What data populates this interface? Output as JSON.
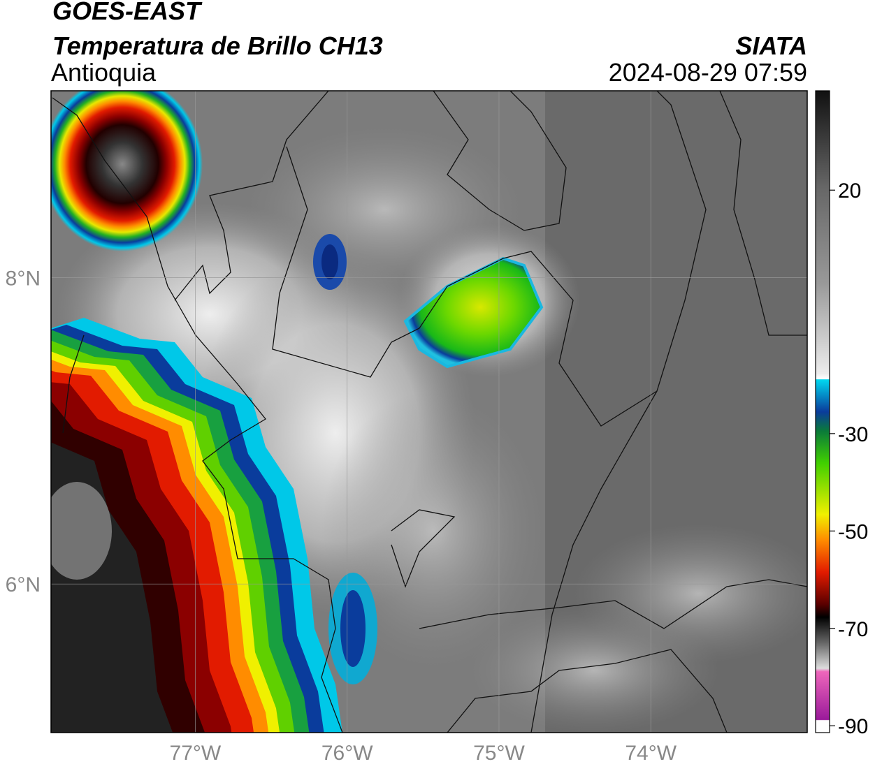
{
  "header": {
    "title": "GOES-EAST",
    "subtitle": "Temperatura de Brillo CH13",
    "region": "Antioquia",
    "source": "SIATA",
    "timestamp": "2024-08-29 07:59"
  },
  "map": {
    "xlim": [
      -77.95,
      -72.97
    ],
    "ylim": [
      5.03,
      9.22
    ],
    "xticks": [
      {
        "value": -77,
        "label": "77°W"
      },
      {
        "value": -76,
        "label": "76°W"
      },
      {
        "value": -75,
        "label": "75°W"
      },
      {
        "value": -74,
        "label": "74°W"
      }
    ],
    "yticks": [
      {
        "value": 8,
        "label": "8°N"
      },
      {
        "value": 6,
        "label": "6°N"
      }
    ],
    "grid": true
  },
  "colorbar": {
    "lim": [
      -91.4,
      40.4
    ],
    "ticks": [
      20,
      -30,
      -50,
      -70,
      -90
    ]
  }
}
